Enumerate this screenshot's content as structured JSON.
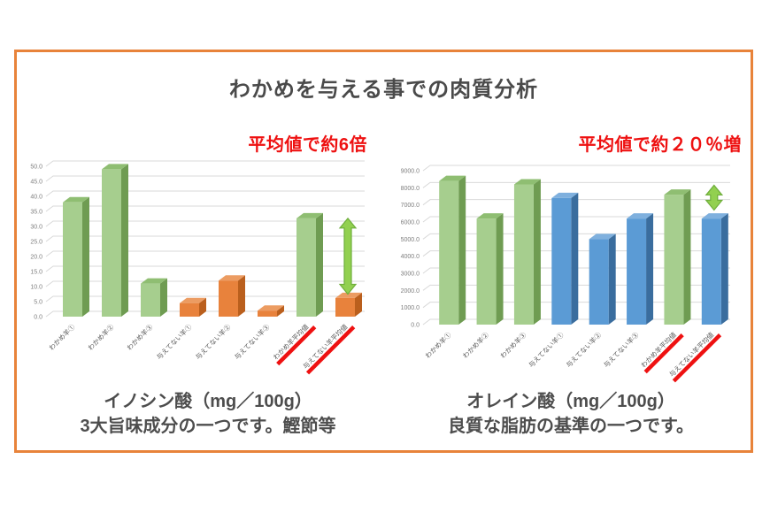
{
  "slide": {
    "title": "わかめを与える事での肉質分析"
  },
  "colors": {
    "border": "#E8833A",
    "red": "#EE1111",
    "title_text": "#4A4A4A",
    "caption_text": "#4D4D4D",
    "grid": "#D9D9D9",
    "axis_text": "#7F7F7F",
    "arrow_fill": "#92D050",
    "arrow_stroke": "#6FAE3C",
    "green": {
      "front": "#A6CE8E",
      "top": "#8FBE72",
      "side": "#6F9C52"
    },
    "orange": {
      "front": "#E8823C",
      "top": "#EC9C62",
      "side": "#BA5F1D"
    },
    "blue": {
      "front": "#5B9BD5",
      "top": "#7FB0DE",
      "side": "#3A6D9E"
    }
  },
  "chart_data": [
    {
      "type": "bar",
      "title": "イノシン酸（mg／100g）",
      "annotation": "平均値で約6倍",
      "caption": [
        "イノシン酸（mg／100g）",
        "3大旨味成分の一つです。鰹節等"
      ],
      "categories": [
        "わかめ羊①",
        "わかめ羊②",
        "わかめ羊③",
        "与えてない羊①",
        "与えてない羊②",
        "与えてない羊③",
        "わかめ羊平均値",
        "与えてない羊平均値"
      ],
      "values": [
        38,
        49,
        11,
        4.5,
        12,
        2,
        32.7,
        6.2
      ],
      "bar_colors": [
        "green",
        "green",
        "green",
        "orange",
        "orange",
        "orange",
        "green",
        "orange"
      ],
      "highlighted": [
        6,
        7
      ],
      "ylim": [
        0,
        50
      ],
      "ytick_step": 5,
      "xlabel": "",
      "ylabel": "",
      "grid": true,
      "legend": false,
      "arrow": {
        "from": 32.7,
        "to": 7.5
      }
    },
    {
      "type": "bar",
      "title": "オレイン酸（mg／100g）",
      "annotation": "平均値で約２０％増",
      "caption": [
        "オレイン酸（mg／100g）",
        "良質な脂肪の基準の一つです。"
      ],
      "categories": [
        "わかめ羊①",
        "わかめ羊②",
        "わかめ羊③",
        "与えてない羊①",
        "与えてない羊②",
        "与えてない羊③",
        "わかめ羊平均値",
        "与えてない羊平均値"
      ],
      "values": [
        8400,
        6200,
        8200,
        7400,
        5000,
        6200,
        7600,
        6200
      ],
      "bar_colors": [
        "green",
        "green",
        "green",
        "blue",
        "blue",
        "blue",
        "green",
        "blue"
      ],
      "highlighted": [
        6,
        7
      ],
      "ylim": [
        0,
        9000
      ],
      "ytick_step": 1000,
      "xlabel": "",
      "ylabel": "",
      "grid": true,
      "legend": false,
      "arrow": {
        "from": 8150,
        "to": 6700
      }
    }
  ]
}
